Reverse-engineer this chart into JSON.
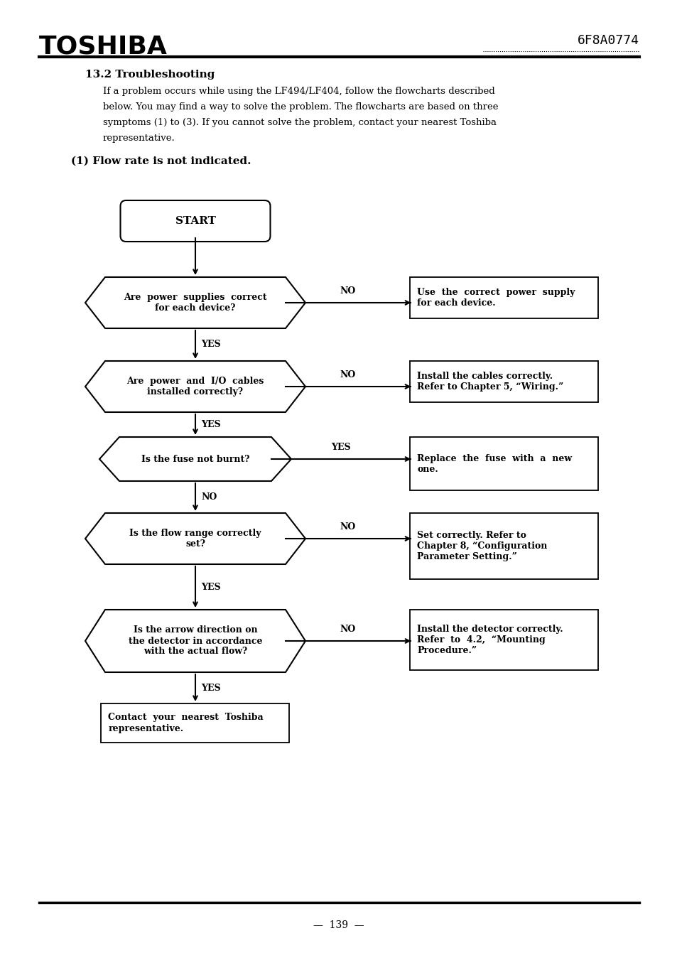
{
  "title": "TOSHIBA",
  "doc_number": "6F8A0774",
  "section_title": "13.2 Troubleshooting",
  "intro_line1": "If a problem occurs while using the LF494/LF404, follow the flowcharts described",
  "intro_line2": "below. You may find a way to solve the problem. The flowcharts are based on three",
  "intro_line3": "symptoms (1) to (3). If you cannot solve the problem, contact your nearest Toshiba",
  "intro_line4": "representative.",
  "flowchart_title": "(1) Flow rate is not indicated.",
  "page_number": "139",
  "bg_color": "#ffffff",
  "text_color": "#000000"
}
